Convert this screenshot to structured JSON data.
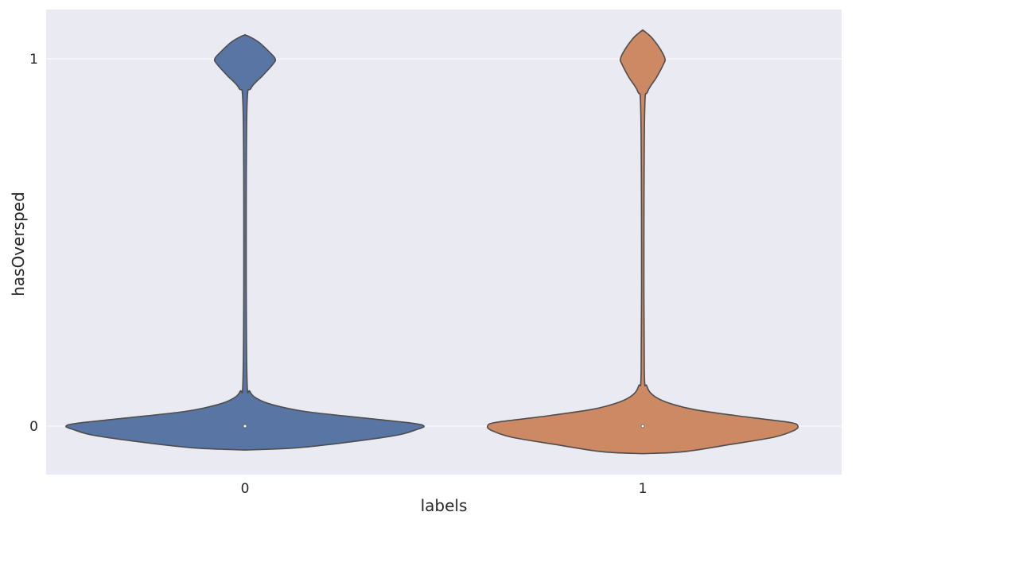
{
  "chart_data": {
    "type": "violin",
    "title": "",
    "xlabel": "labels",
    "ylabel": "hasOversped",
    "categories": [
      "0",
      "1"
    ],
    "yticks": [
      0,
      1
    ],
    "ytick_labels": [
      "0",
      "1"
    ],
    "ylim": [
      -0.13,
      1.13
    ],
    "grid": true,
    "background_color": "#eaeaf2",
    "grid_color": "#ffffff",
    "series": [
      {
        "name": "0",
        "color": "#5875a4",
        "median": 0,
        "profile": [
          {
            "y": -0.065,
            "halfwidth": 0.0
          },
          {
            "y": -0.06,
            "halfwidth": 0.12
          },
          {
            "y": -0.045,
            "halfwidth": 0.25
          },
          {
            "y": -0.025,
            "halfwidth": 0.38
          },
          {
            "y": -0.01,
            "halfwidth": 0.43
          },
          {
            "y": 0.0,
            "halfwidth": 0.45
          },
          {
            "y": 0.008,
            "halfwidth": 0.42
          },
          {
            "y": 0.022,
            "halfwidth": 0.3
          },
          {
            "y": 0.04,
            "halfwidth": 0.15
          },
          {
            "y": 0.058,
            "halfwidth": 0.07
          },
          {
            "y": 0.075,
            "halfwidth": 0.03
          },
          {
            "y": 0.095,
            "halfwidth": 0.012
          },
          {
            "y": 0.13,
            "halfwidth": 0.005
          },
          {
            "y": 0.5,
            "halfwidth": 0.003
          },
          {
            "y": 0.87,
            "halfwidth": 0.005
          },
          {
            "y": 0.92,
            "halfwidth": 0.015
          },
          {
            "y": 0.955,
            "halfwidth": 0.045
          },
          {
            "y": 0.985,
            "halfwidth": 0.07
          },
          {
            "y": 1.0,
            "halfwidth": 0.076
          },
          {
            "y": 1.02,
            "halfwidth": 0.06
          },
          {
            "y": 1.045,
            "halfwidth": 0.035
          },
          {
            "y": 1.06,
            "halfwidth": 0.012
          },
          {
            "y": 1.065,
            "halfwidth": 0.0
          }
        ]
      },
      {
        "name": "1",
        "color": "#cc8963",
        "median": 0,
        "profile": [
          {
            "y": -0.075,
            "halfwidth": 0.0
          },
          {
            "y": -0.07,
            "halfwidth": 0.1
          },
          {
            "y": -0.05,
            "halfwidth": 0.22
          },
          {
            "y": -0.03,
            "halfwidth": 0.33
          },
          {
            "y": -0.012,
            "halfwidth": 0.38
          },
          {
            "y": 0.0,
            "halfwidth": 0.39
          },
          {
            "y": 0.01,
            "halfwidth": 0.37
          },
          {
            "y": 0.025,
            "halfwidth": 0.26
          },
          {
            "y": 0.045,
            "halfwidth": 0.13
          },
          {
            "y": 0.065,
            "halfwidth": 0.06
          },
          {
            "y": 0.085,
            "halfwidth": 0.025
          },
          {
            "y": 0.11,
            "halfwidth": 0.01
          },
          {
            "y": 0.15,
            "halfwidth": 0.004
          },
          {
            "y": 0.5,
            "halfwidth": 0.003
          },
          {
            "y": 0.86,
            "halfwidth": 0.005
          },
          {
            "y": 0.91,
            "halfwidth": 0.012
          },
          {
            "y": 0.95,
            "halfwidth": 0.035
          },
          {
            "y": 0.985,
            "halfwidth": 0.052
          },
          {
            "y": 1.0,
            "halfwidth": 0.056
          },
          {
            "y": 1.025,
            "halfwidth": 0.045
          },
          {
            "y": 1.055,
            "halfwidth": 0.025
          },
          {
            "y": 1.072,
            "halfwidth": 0.008
          },
          {
            "y": 1.078,
            "halfwidth": 0.0
          }
        ]
      }
    ]
  }
}
